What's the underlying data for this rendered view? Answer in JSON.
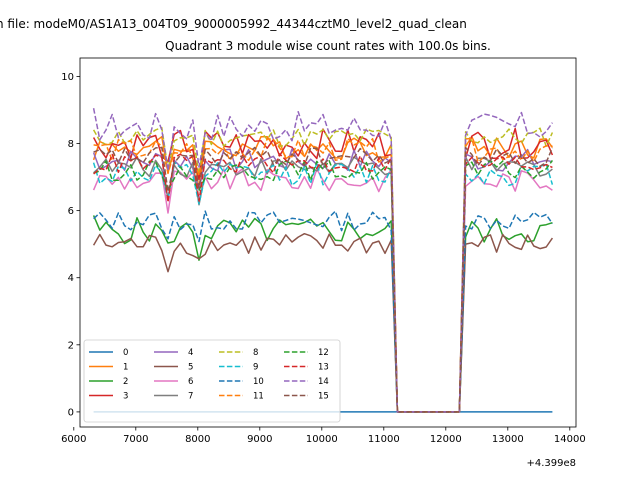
{
  "suptitle": "n file: modeM0/AS1A13_004T09_9000005992_44344cztM0_level2_quad_clean",
  "chart_data": {
    "type": "line",
    "title": "Quadrant 3 module wise count rates with 100.0s bins.",
    "xlabel": "",
    "ylabel": "",
    "x_offset_label": "+4.399e8",
    "xlim": [
      6100,
      14100
    ],
    "ylim": [
      -0.45,
      10.55
    ],
    "xticks": [
      6000,
      7000,
      8000,
      9000,
      10000,
      11000,
      12000,
      13000,
      14000
    ],
    "yticks": [
      0,
      2,
      4,
      6,
      8,
      10
    ],
    "grid": false,
    "legend": {
      "placement": "lower-left",
      "ncol": 4
    },
    "segments": {
      "seg1": {
        "start": 6320,
        "end": 11120,
        "step": 100
      },
      "seg2": {
        "start": 12320,
        "end": 13720,
        "step": 100
      },
      "gap_points": [
        11220,
        12220
      ]
    },
    "series": [
      {
        "name": "0",
        "color": "#1f77b4",
        "dash": "solid",
        "base": 0,
        "amp": 0
      },
      {
        "name": "1",
        "color": "#ff7f0e",
        "dash": "solid",
        "base": 7.9,
        "amp": 0.35
      },
      {
        "name": "2",
        "color": "#2ca02c",
        "dash": "solid",
        "base": 5.4,
        "amp": 0.4
      },
      {
        "name": "3",
        "color": "#d62728",
        "dash": "solid",
        "base": 8.0,
        "amp": 0.45
      },
      {
        "name": "4",
        "color": "#9467bd",
        "dash": "solid",
        "base": 7.5,
        "amp": 0.35
      },
      {
        "name": "5",
        "color": "#8c564b",
        "dash": "solid",
        "base": 5.0,
        "amp": 0.35
      },
      {
        "name": "6",
        "color": "#e377c2",
        "dash": "solid",
        "base": 6.9,
        "amp": 0.35
      },
      {
        "name": "7",
        "color": "#7f7f7f",
        "dash": "solid",
        "base": 7.3,
        "amp": 0.3
      },
      {
        "name": "8",
        "color": "#bcbd22",
        "dash": "dashed",
        "base": 8.2,
        "amp": 0.3
      },
      {
        "name": "9",
        "color": "#17becf",
        "dash": "dashed",
        "base": 7.1,
        "amp": 0.35
      },
      {
        "name": "10",
        "color": "#1f77b4",
        "dash": "dashed",
        "base": 5.7,
        "amp": 0.3
      },
      {
        "name": "11",
        "color": "#ff7f0e",
        "dash": "dashed",
        "base": 7.8,
        "amp": 0.35
      },
      {
        "name": "12",
        "color": "#2ca02c",
        "dash": "dashed",
        "base": 7.2,
        "amp": 0.3
      },
      {
        "name": "13",
        "color": "#d62728",
        "dash": "dashed",
        "base": 7.4,
        "amp": 0.3
      },
      {
        "name": "14",
        "color": "#9467bd",
        "dash": "dashed",
        "base": 8.5,
        "amp": 0.45
      },
      {
        "name": "15",
        "color": "#8c564b",
        "dash": "dashed",
        "base": 7.6,
        "amp": 0.3
      }
    ]
  }
}
